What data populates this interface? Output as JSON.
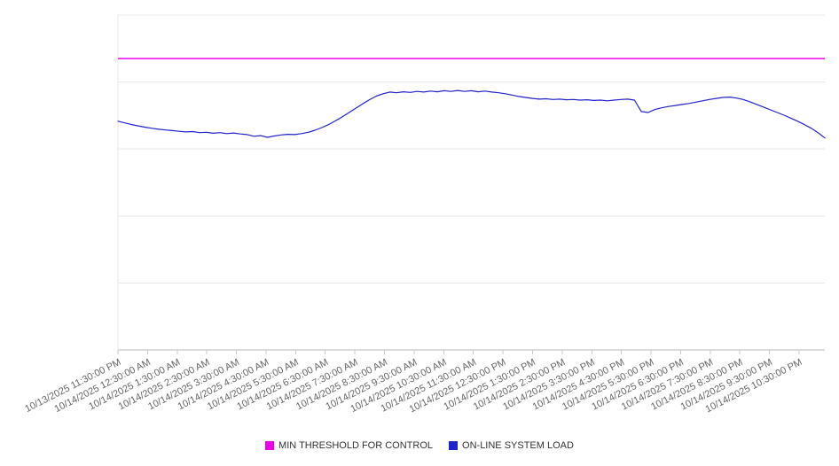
{
  "chart_data": {
    "type": "line",
    "title": "",
    "xlabel": "",
    "ylabel": "",
    "ylim": [
      0,
      100
    ],
    "y_gridlines": [
      0,
      20,
      40,
      60,
      80,
      100
    ],
    "grid": "horizontal",
    "legend_position": "bottom",
    "x_tick_labels": [
      "10/13/2025 11:30:00 PM",
      "10/14/2025 12:30:00 AM",
      "10/14/2025 1:30:00 AM",
      "10/14/2025 2:30:00 AM",
      "10/14/2025 3:30:00 AM",
      "10/14/2025 4:30:00 AM",
      "10/14/2025 5:30:00 AM",
      "10/14/2025 6:30:00 AM",
      "10/14/2025 7:30:00 AM",
      "10/14/2025 8:30:00 AM",
      "10/14/2025 9:30:00 AM",
      "10/14/2025 10:30:00 AM",
      "10/14/2025 11:30:00 AM",
      "10/14/2025 12:30:00 PM",
      "10/14/2025 1:30:00 PM",
      "10/14/2025 2:30:00 PM",
      "10/14/2025 3:30:00 PM",
      "10/14/2025 4:30:00 PM",
      "10/14/2025 5:30:00 PM",
      "10/14/2025 6:30:00 PM",
      "10/14/2025 7:30:00 PM",
      "10/14/2025 8:30:00 PM",
      "10/14/2025 9:30:00 PM",
      "10/14/2025 10:30:00 PM"
    ],
    "series": [
      {
        "name": "MIN THRESHOLD FOR CONTROL",
        "color": "#ee00ee",
        "style": "threshold",
        "value": 87
      },
      {
        "name": "ON-LINE SYSTEM LOAD",
        "color": "#2222cc",
        "style": "line",
        "values": [
          68.3,
          67.8,
          67.3,
          66.9,
          66.5,
          66.2,
          65.9,
          65.7,
          65.5,
          65.3,
          65.1,
          65.2,
          64.9,
          65.0,
          64.7,
          64.9,
          64.6,
          64.8,
          64.5,
          64.3,
          63.8,
          64.0,
          63.5,
          63.9,
          64.2,
          64.4,
          64.3,
          64.6,
          65.0,
          65.6,
          66.4,
          67.3,
          68.4,
          69.6,
          70.9,
          72.2,
          73.5,
          74.7,
          75.8,
          76.5,
          77.0,
          76.8,
          77.1,
          76.9,
          77.2,
          77.0,
          77.3,
          77.1,
          77.4,
          77.2,
          77.5,
          77.2,
          77.4,
          77.1,
          77.3,
          77.0,
          76.8,
          76.5,
          76.1,
          75.7,
          75.4,
          75.1,
          74.9,
          75.0,
          74.8,
          74.9,
          74.7,
          74.8,
          74.6,
          74.7,
          74.5,
          74.6,
          74.4,
          74.6,
          74.8,
          74.9,
          74.6,
          71.2,
          70.9,
          71.8,
          72.3,
          72.7,
          73.0,
          73.3,
          73.6,
          74.0,
          74.4,
          74.8,
          75.1,
          75.4,
          75.5,
          75.2,
          74.8,
          74.1,
          73.3,
          72.5,
          71.7,
          70.9,
          70.1,
          69.2,
          68.3,
          67.3,
          66.2,
          64.9,
          63.3
        ]
      }
    ]
  },
  "colors": {
    "gridline": "#e7e7e7",
    "axis_line": "#b8b8b8",
    "tick_mark": "#c9c9c9",
    "tick_label": "#666666",
    "legend_text": "#333333",
    "background": "#ffffff"
  }
}
